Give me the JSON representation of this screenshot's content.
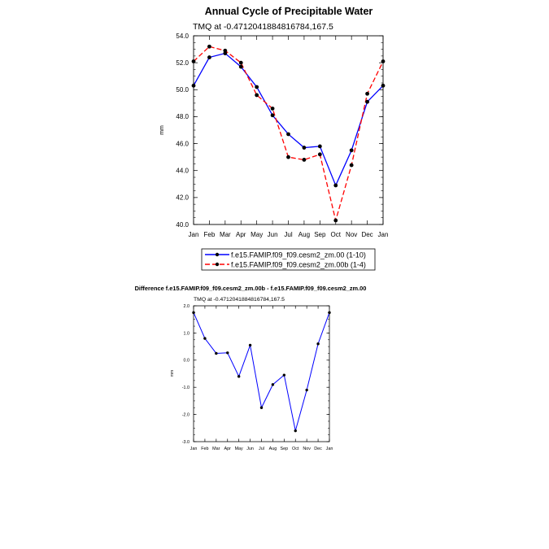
{
  "chart_data": [
    {
      "type": "line",
      "title": "Annual Cycle of Precipitable Water",
      "subtitle": "TMQ at -0.4712041884816784,167.5",
      "xlabel": "",
      "ylabel": "mm",
      "categories": [
        "Jan",
        "Feb",
        "Mar",
        "Apr",
        "May",
        "Jun",
        "Jul",
        "Aug",
        "Sep",
        "Oct",
        "Nov",
        "Dec",
        "Jan"
      ],
      "yticks": [
        "40.0",
        "42.0",
        "44.0",
        "46.0",
        "48.0",
        "50.0",
        "52.0",
        "54.0"
      ],
      "ylim": [
        40,
        54
      ],
      "legend_position": "bottom",
      "series": [
        {
          "name": "f.e15.FAMIP.f09_f09.cesm2_zm.00 (1-10)",
          "color": "#0000ff",
          "dash": "solid",
          "values": [
            50.3,
            52.4,
            52.7,
            51.7,
            50.2,
            48.1,
            46.7,
            45.7,
            45.8,
            42.9,
            45.5,
            49.1,
            50.3
          ]
        },
        {
          "name": "f.e15.FAMIP.f09_f09.cesm2_zm.00b (1-4)",
          "color": "#ff0000",
          "dash": "dashed",
          "values": [
            52.1,
            53.2,
            52.9,
            52.0,
            49.6,
            48.6,
            45.0,
            44.8,
            45.2,
            40.3,
            44.4,
            49.7,
            52.1
          ]
        }
      ]
    },
    {
      "type": "line",
      "title": "Difference f.e15.FAMIP.f09_f09.cesm2_zm.00b - f.e15.FAMIP.f09_f09.cesm2_zm.00",
      "subtitle": "TMQ at -0.4712041884816784,167.5",
      "xlabel": "",
      "ylabel": "mm",
      "categories": [
        "Jan",
        "Feb",
        "Mar",
        "Apr",
        "May",
        "Jun",
        "Jul",
        "Aug",
        "Sep",
        "Oct",
        "Nov",
        "Dec",
        "Jan"
      ],
      "yticks": [
        "-3.0",
        "-2.0",
        "-1.0",
        "0.0",
        "1.0",
        "2.0"
      ],
      "ylim": [
        -3,
        2
      ],
      "series": [
        {
          "name": "difference",
          "color": "#0000ff",
          "dash": "solid",
          "values": [
            1.75,
            0.8,
            0.25,
            0.27,
            -0.6,
            0.55,
            -1.75,
            -0.9,
            -0.55,
            -2.6,
            -1.1,
            0.6,
            1.75
          ]
        }
      ]
    }
  ]
}
